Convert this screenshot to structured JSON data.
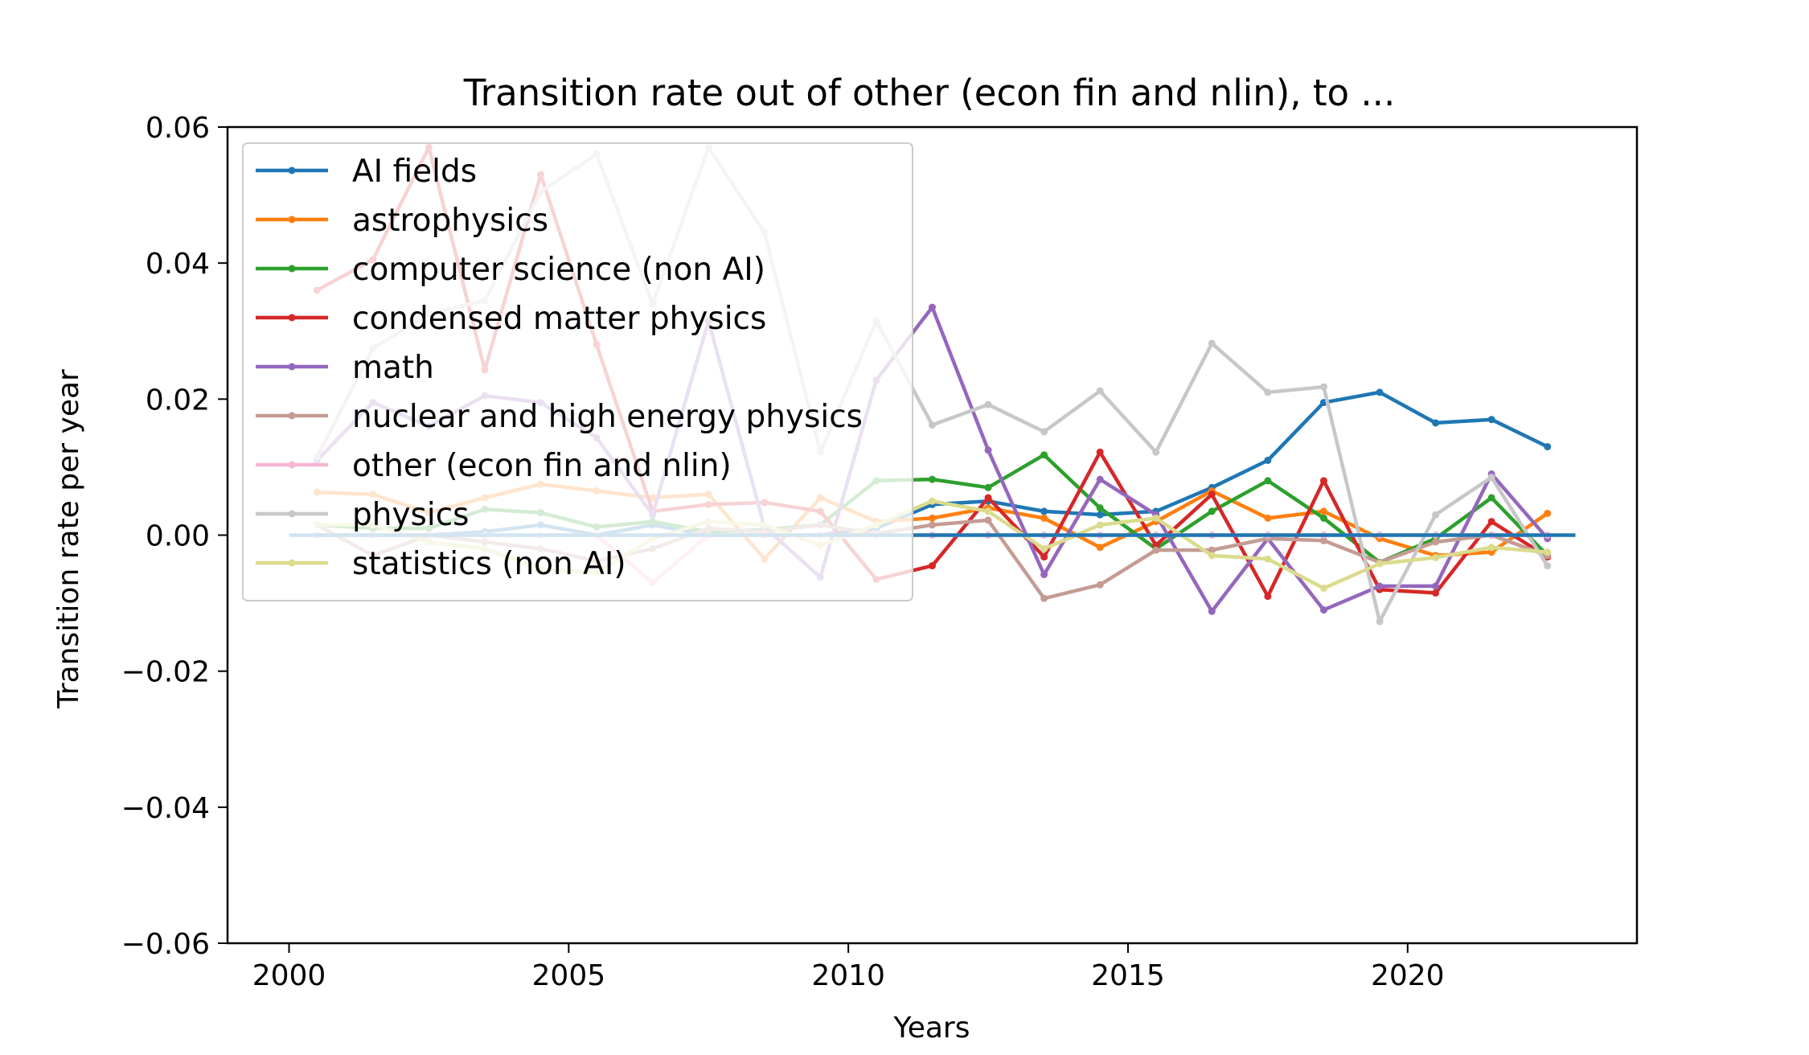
{
  "chart_data": {
    "type": "line",
    "title": "Transition rate out of other (econ fin and nlin), to ...",
    "xlabel": "Years",
    "ylabel": "Transition rate per year",
    "xlim": [
      1998.9,
      2024.1
    ],
    "ylim": [
      -0.06,
      0.06
    ],
    "xticks": [
      2000,
      2005,
      2010,
      2015,
      2020
    ],
    "xtick_labels": [
      "2000",
      "2005",
      "2010",
      "2015",
      "2020"
    ],
    "yticks": [
      -0.06,
      -0.04,
      -0.02,
      0.0,
      0.02,
      0.04,
      0.06
    ],
    "ytick_labels": [
      "−0.06",
      "−0.04",
      "−0.02",
      "0.00",
      "0.02",
      "0.04",
      "0.06"
    ],
    "legend_position": "upper-left",
    "grid": false,
    "reference_line": {
      "y": 0.0,
      "x_range": [
        2000,
        2023
      ],
      "color": "#1f77b4"
    },
    "x": [
      2000.5,
      2001.5,
      2002.5,
      2003.5,
      2004.5,
      2005.5,
      2006.5,
      2007.5,
      2008.5,
      2009.5,
      2010.5,
      2011.5,
      2012.5,
      2013.5,
      2014.5,
      2015.5,
      2016.5,
      2017.5,
      2018.5,
      2019.5,
      2020.5,
      2021.5,
      2022.5
    ],
    "series": [
      {
        "name": "AI fields",
        "color": "#1f77b4",
        "values": [
          0.0,
          0.0,
          0.0,
          0.0005,
          0.0015,
          0.0,
          0.0015,
          0.0,
          0.0,
          0.0,
          0.001,
          0.0045,
          0.005,
          0.0035,
          0.003,
          0.0035,
          0.007,
          0.011,
          0.0195,
          0.021,
          0.0165,
          0.017,
          0.013
        ]
      },
      {
        "name": "astrophysics",
        "color": "#ff7f0e",
        "values": [
          0.0063,
          0.006,
          0.0033,
          0.0055,
          0.0075,
          0.0065,
          0.0055,
          0.006,
          -0.0035,
          0.0055,
          0.002,
          0.0025,
          0.004,
          0.0025,
          -0.0018,
          0.002,
          0.0065,
          0.0025,
          0.0035,
          -0.0005,
          -0.003,
          -0.0025,
          0.0032
        ]
      },
      {
        "name": "computer science (non AI)",
        "color": "#2ca02c",
        "values": [
          0.0015,
          0.001,
          0.001,
          0.0038,
          0.0033,
          0.0012,
          0.002,
          0.0005,
          0.0008,
          0.0015,
          0.008,
          0.0082,
          0.007,
          0.0118,
          0.004,
          -0.002,
          0.0035,
          0.008,
          0.0025,
          -0.004,
          -0.0005,
          0.0055,
          -0.003
        ]
      },
      {
        "name": "condensed matter physics",
        "color": "#d62728",
        "values": [
          0.036,
          0.0405,
          0.057,
          0.0243,
          0.053,
          0.028,
          0.0035,
          0.0045,
          0.0048,
          0.0035,
          -0.0065,
          -0.0045,
          0.0055,
          -0.0032,
          0.0122,
          -0.0015,
          0.006,
          -0.009,
          0.008,
          -0.008,
          -0.0085,
          0.002,
          -0.0032
        ]
      },
      {
        "name": "math",
        "color": "#9467bd",
        "values": [
          0.011,
          0.0195,
          0.016,
          0.0205,
          0.0195,
          0.0143,
          0.003,
          0.0315,
          0.0012,
          -0.0062,
          0.0228,
          0.0335,
          0.0125,
          -0.0058,
          0.0082,
          0.003,
          -0.0112,
          -0.0005,
          -0.011,
          -0.0075,
          -0.0075,
          0.009,
          -0.0005
        ]
      },
      {
        "name": "nuclear and high energy physics",
        "color": "#c49c94",
        "values": [
          0.0015,
          -0.003,
          0.0,
          -0.001,
          -0.002,
          -0.0038,
          -0.002,
          0.001,
          0.0005,
          0.0015,
          0.0002,
          0.0015,
          0.0022,
          -0.0093,
          -0.0073,
          -0.0022,
          -0.0022,
          -0.0005,
          -0.0008,
          -0.004,
          -0.001,
          0.0,
          -0.003
        ]
      },
      {
        "name": "other (econ fin and nlin)",
        "color": "#f7b6d2",
        "values": [
          0.0,
          0.0,
          0.0,
          0.0,
          0.0,
          0.0,
          -0.007,
          0.0,
          0.0,
          0.0,
          0.0,
          0.0,
          0.0,
          0.0,
          0.0,
          0.0,
          0.0,
          0.0,
          0.0,
          0.0,
          0.0,
          0.0,
          0.0
        ]
      },
      {
        "name": "physics",
        "color": "#c7c7c7",
        "values": [
          0.0115,
          0.0275,
          0.0325,
          0.0345,
          0.0505,
          0.056,
          0.034,
          0.057,
          0.0445,
          0.0122,
          0.0315,
          0.0162,
          0.0192,
          0.0152,
          0.0212,
          0.0122,
          0.0282,
          0.021,
          0.0218,
          -0.0127,
          0.003,
          0.0085,
          -0.0045
        ]
      },
      {
        "name": "statistics (non AI)",
        "color": "#dbdb8d",
        "values": [
          0.0015,
          0.0015,
          -0.001,
          -0.002,
          -0.005,
          -0.0055,
          -0.0005,
          0.002,
          0.0015,
          -0.0015,
          0.0015,
          0.005,
          0.0035,
          -0.002,
          0.0015,
          0.0025,
          -0.003,
          -0.0035,
          -0.0078,
          -0.0042,
          -0.0033,
          -0.0018,
          -0.0025
        ]
      }
    ]
  }
}
